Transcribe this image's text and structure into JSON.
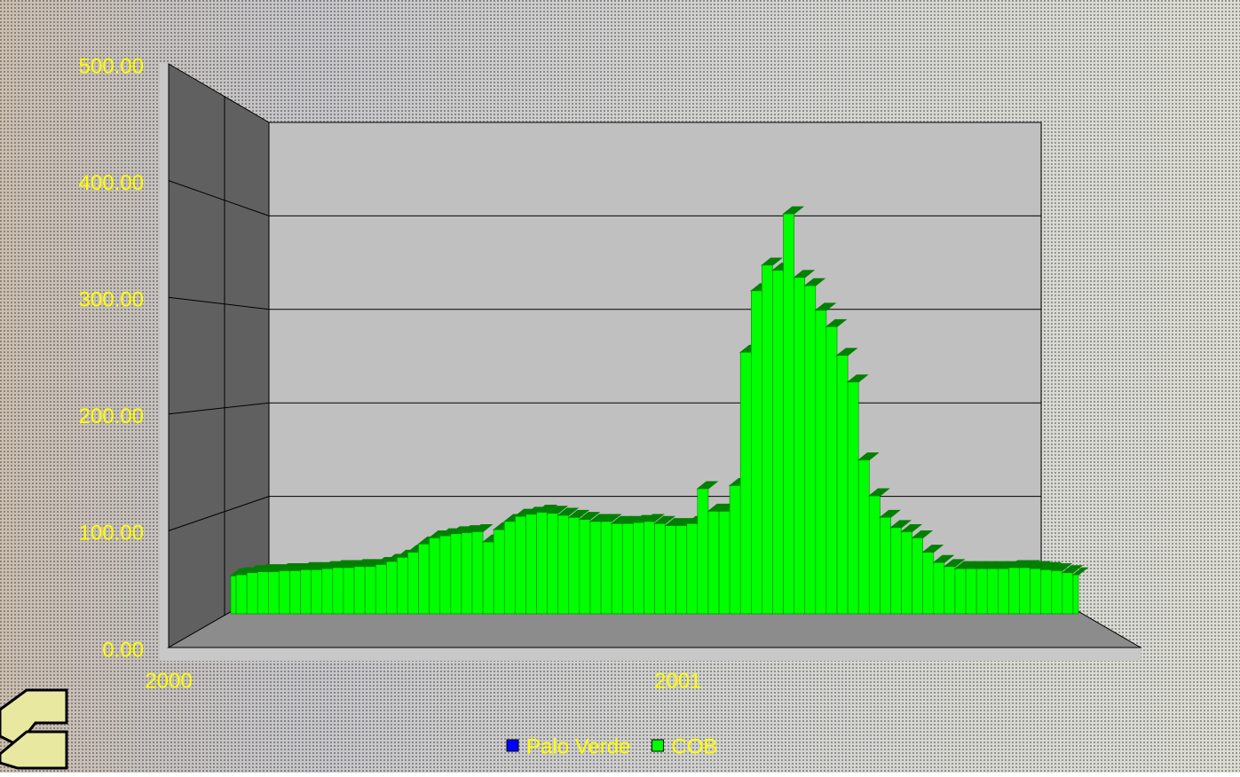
{
  "chart_data": {
    "type": "area3d",
    "categories": [
      "2000",
      null,
      null,
      null,
      null,
      null,
      null,
      null,
      null,
      null,
      null,
      null,
      null,
      null,
      null,
      null,
      null,
      null,
      null,
      null,
      null,
      null,
      null,
      null,
      null,
      null,
      null,
      null,
      null,
      null,
      null,
      null,
      null,
      null,
      null,
      null,
      null,
      null,
      null,
      null,
      null,
      null,
      "2001",
      null,
      null,
      null,
      null,
      null,
      null,
      null,
      null,
      null,
      null,
      null,
      null,
      null,
      null,
      null,
      null,
      null,
      null,
      null,
      null,
      null,
      null,
      null,
      null,
      null,
      null,
      null,
      null,
      null,
      null,
      null,
      null,
      null,
      null,
      null,
      null,
      null
    ],
    "series": [
      {
        "name": "Palo Verde",
        "color": "#0000ff",
        "values": [
          null,
          null,
          null,
          null,
          null,
          null,
          null,
          null,
          null,
          null,
          null,
          null,
          null,
          null,
          null,
          null,
          null,
          null,
          null,
          null,
          null,
          null,
          null,
          null,
          null,
          null,
          null,
          null,
          null,
          null,
          null,
          null,
          null,
          null,
          null,
          null,
          null,
          null,
          null,
          null,
          null,
          null,
          null,
          null,
          null,
          null,
          null,
          null,
          null,
          null,
          null,
          null,
          null,
          null,
          null,
          null,
          null,
          null,
          null,
          null,
          null,
          null,
          null,
          null,
          null,
          null,
          null,
          null,
          null,
          null,
          null,
          null,
          null,
          null,
          null,
          null,
          null,
          null,
          null,
          null
        ]
      },
      {
        "name": "COB",
        "color": "#00ff00",
        "values": [
          37,
          38,
          40,
          41,
          41,
          42,
          42,
          43,
          43,
          44,
          45,
          45,
          46,
          46,
          48,
          51,
          55,
          60,
          68,
          74,
          76,
          78,
          79,
          80,
          70,
          82,
          90,
          95,
          97,
          99,
          98,
          96,
          94,
          92,
          90,
          90,
          88,
          88,
          89,
          90,
          88,
          86,
          86,
          88,
          122,
          100,
          100,
          125,
          255,
          315,
          340,
          335,
          390,
          328,
          320,
          296,
          280,
          252,
          226,
          150,
          115,
          94,
          84,
          80,
          74,
          60,
          50,
          46,
          44,
          44,
          44,
          44,
          44,
          45,
          45,
          44,
          43,
          42,
          40,
          38
        ]
      }
    ],
    "ylim": [
      0,
      500
    ],
    "yticks": [
      {
        "value": 0,
        "label": "0.00"
      },
      {
        "value": 100,
        "label": "100.00"
      },
      {
        "value": 200,
        "label": "200.00"
      },
      {
        "value": 300,
        "label": "300.00"
      },
      {
        "value": 400,
        "label": "400.00"
      },
      {
        "value": 500,
        "label": "500.00"
      }
    ],
    "grid": true
  }
}
